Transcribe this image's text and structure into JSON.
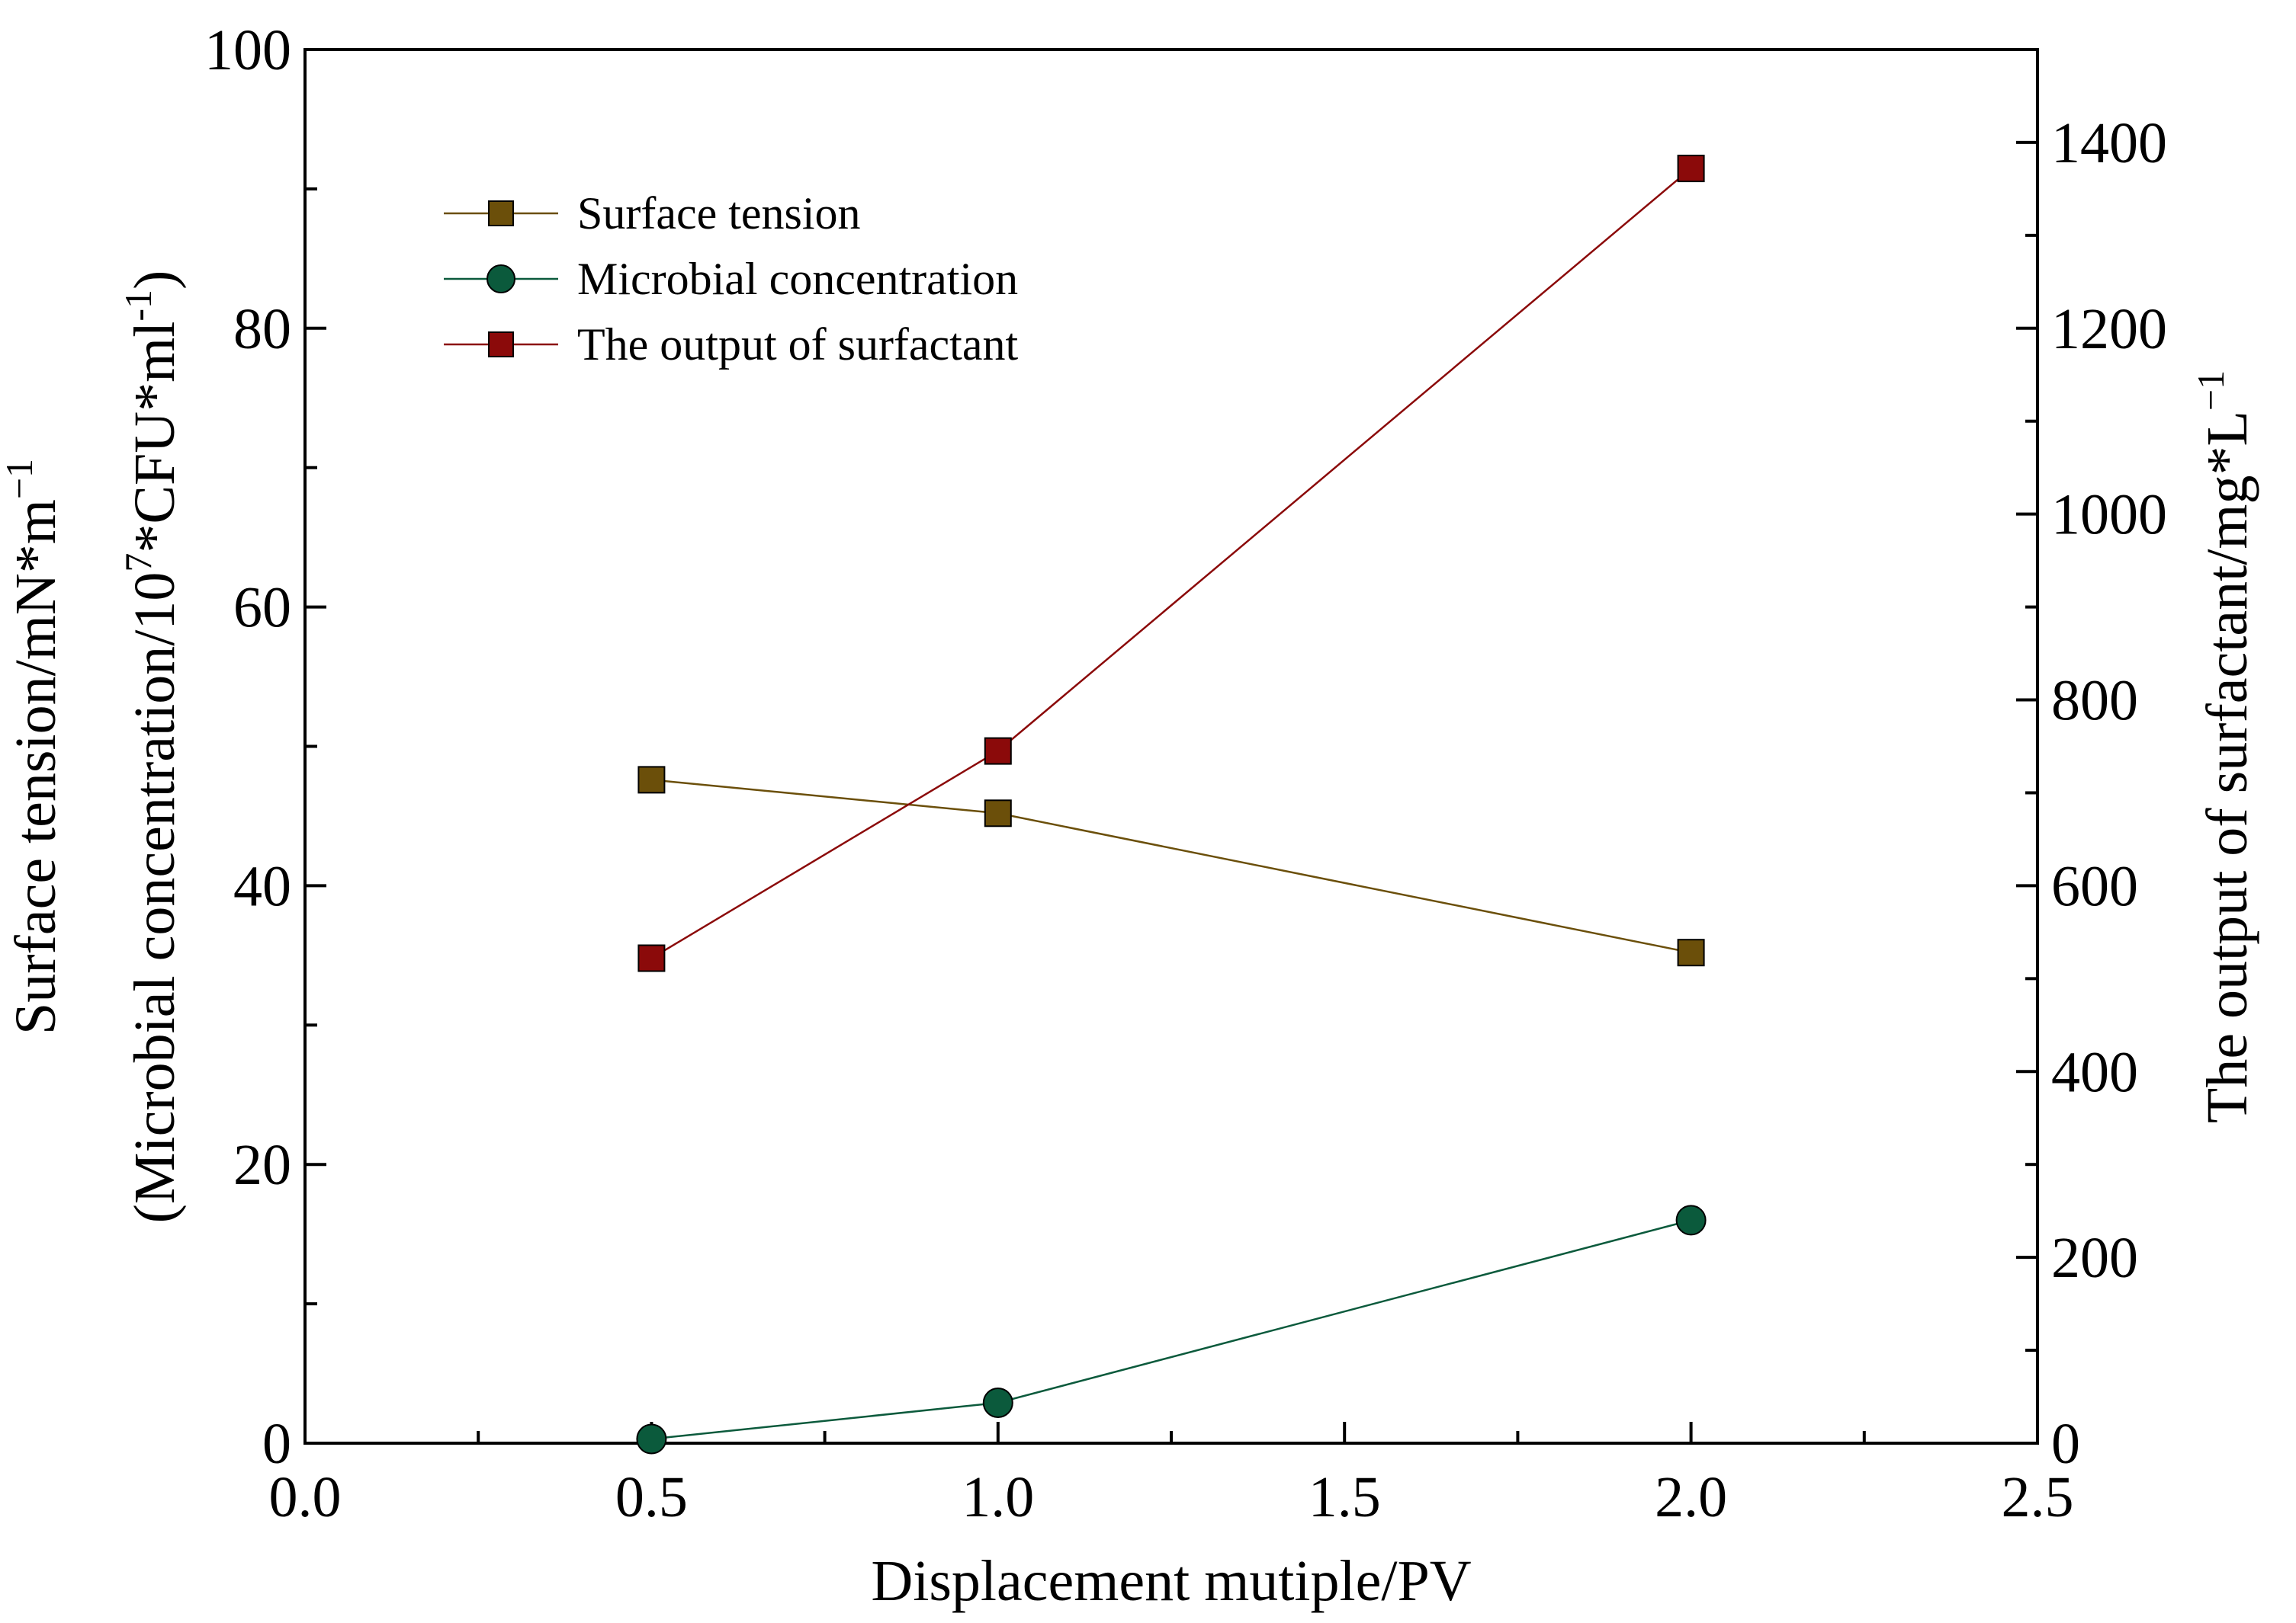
{
  "chart_data": {
    "type": "line",
    "xlabel": "Displacement mutiple/PV",
    "ylabel_left": {
      "line1": {
        "text": "Surface tension/mN*m",
        "sup": "−1"
      },
      "line2": {
        "prefix": "(Microbial concentration/10",
        "sup1": "7",
        "middle": "*CFU*ml",
        "sup2": "-1",
        "suffix": ")"
      }
    },
    "ylabel_right": {
      "text": "The output of surfactant/mg*L",
      "sup": "−1"
    },
    "xlim": [
      0,
      2.5
    ],
    "ylim_left": [
      0,
      100
    ],
    "ylim_right": [
      0,
      1500
    ],
    "x_ticks": [
      "0.0",
      "0.5",
      "1.0",
      "1.5",
      "2.0",
      "2.5"
    ],
    "y_left_ticks": [
      "0",
      "20",
      "40",
      "60",
      "80",
      "100"
    ],
    "y_right_ticks": [
      "0",
      "200",
      "400",
      "600",
      "800",
      "1000",
      "1200",
      "1400"
    ],
    "legend_position": "top-left",
    "series": [
      {
        "name": "Surface tension",
        "axis": "left",
        "marker": "square",
        "color": "#6b4f0a",
        "x": [
          0.5,
          1.0,
          2.0
        ],
        "y": [
          47.6,
          45.2,
          35.2
        ]
      },
      {
        "name": "Microbial concentration",
        "axis": "left",
        "marker": "circle",
        "color": "#0b5a3c",
        "x": [
          0.5,
          1.0,
          2.0
        ],
        "y": [
          0.3,
          2.9,
          16.0
        ]
      },
      {
        "name": "The output of surfactant",
        "axis": "right",
        "marker": "square",
        "color": "#8b0a0a",
        "x": [
          0.5,
          1.0,
          2.0
        ],
        "y": [
          522,
          745,
          1372
        ]
      }
    ]
  }
}
